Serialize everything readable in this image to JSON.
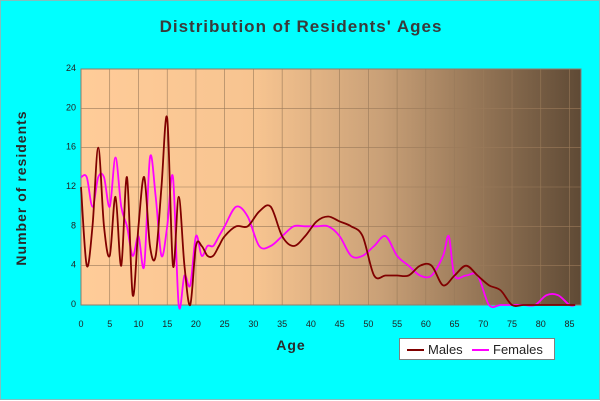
{
  "chart_data": {
    "type": "line",
    "title": "Distribution of Residents' Ages",
    "xlabel": "Age",
    "ylabel": "Number of residents",
    "xlim": [
      0,
      87
    ],
    "ylim": [
      0,
      24
    ],
    "x_ticks": [
      0,
      5,
      10,
      15,
      20,
      25,
      30,
      35,
      40,
      45,
      50,
      55,
      60,
      65,
      70,
      75,
      80,
      85
    ],
    "y_ticks": [
      0,
      4,
      8,
      12,
      16,
      20,
      24
    ],
    "grid": true,
    "legend_position": "bottom-right",
    "series": [
      {
        "name": "Males",
        "color": "#800000",
        "points": [
          [
            0,
            12
          ],
          [
            1,
            4
          ],
          [
            2,
            8
          ],
          [
            3,
            16
          ],
          [
            4,
            8
          ],
          [
            5,
            5
          ],
          [
            6,
            11
          ],
          [
            7,
            4
          ],
          [
            8,
            13
          ],
          [
            9,
            1
          ],
          [
            10,
            8
          ],
          [
            11,
            13
          ],
          [
            12,
            6
          ],
          [
            13,
            5
          ],
          [
            14,
            12
          ],
          [
            15,
            19
          ],
          [
            16,
            4
          ],
          [
            17,
            11
          ],
          [
            18,
            4
          ],
          [
            19,
            0
          ],
          [
            20,
            6
          ],
          [
            21,
            6
          ],
          [
            22,
            5
          ],
          [
            23,
            5
          ],
          [
            24,
            6
          ],
          [
            25,
            7
          ],
          [
            27,
            8
          ],
          [
            29,
            8
          ],
          [
            31,
            9.5
          ],
          [
            33,
            10
          ],
          [
            35,
            7
          ],
          [
            37,
            6
          ],
          [
            39,
            7
          ],
          [
            41,
            8.5
          ],
          [
            43,
            9
          ],
          [
            45,
            8.5
          ],
          [
            47,
            8
          ],
          [
            49,
            7
          ],
          [
            51,
            3
          ],
          [
            53,
            3
          ],
          [
            55,
            3
          ],
          [
            57,
            3
          ],
          [
            59,
            4
          ],
          [
            61,
            4
          ],
          [
            63,
            2
          ],
          [
            65,
            3
          ],
          [
            67,
            4
          ],
          [
            69,
            3
          ],
          [
            71,
            2
          ],
          [
            73,
            1.5
          ],
          [
            75,
            0
          ],
          [
            77,
            0
          ],
          [
            79,
            0
          ],
          [
            81,
            0
          ],
          [
            83,
            0
          ],
          [
            85,
            0
          ],
          [
            86,
            0
          ]
        ]
      },
      {
        "name": "Females",
        "color": "#ff00ff",
        "points": [
          [
            0,
            13
          ],
          [
            1,
            13
          ],
          [
            2,
            10
          ],
          [
            3,
            13
          ],
          [
            4,
            13
          ],
          [
            5,
            10
          ],
          [
            6,
            15
          ],
          [
            7,
            10
          ],
          [
            8,
            8
          ],
          [
            9,
            5
          ],
          [
            10,
            7
          ],
          [
            11,
            4
          ],
          [
            12,
            15
          ],
          [
            13,
            11
          ],
          [
            14,
            5
          ],
          [
            15,
            8
          ],
          [
            16,
            13
          ],
          [
            17,
            0
          ],
          [
            18,
            3
          ],
          [
            19,
            2
          ],
          [
            20,
            7
          ],
          [
            21,
            5
          ],
          [
            22,
            6
          ],
          [
            23,
            6
          ],
          [
            24,
            7
          ],
          [
            25,
            8
          ],
          [
            27,
            10
          ],
          [
            29,
            9
          ],
          [
            31,
            6
          ],
          [
            33,
            6
          ],
          [
            35,
            7
          ],
          [
            37,
            8
          ],
          [
            39,
            8
          ],
          [
            41,
            8
          ],
          [
            43,
            8
          ],
          [
            45,
            7
          ],
          [
            47,
            5
          ],
          [
            49,
            5
          ],
          [
            51,
            6
          ],
          [
            53,
            7
          ],
          [
            55,
            5
          ],
          [
            57,
            4
          ],
          [
            59,
            3
          ],
          [
            61,
            3
          ],
          [
            63,
            5
          ],
          [
            64,
            7
          ],
          [
            65,
            3
          ],
          [
            67,
            3
          ],
          [
            69,
            3
          ],
          [
            71,
            0
          ],
          [
            73,
            0
          ],
          [
            75,
            0
          ],
          [
            77,
            0
          ],
          [
            79,
            0
          ],
          [
            81,
            1
          ],
          [
            83,
            1
          ],
          [
            85,
            0
          ],
          [
            86,
            0
          ]
        ]
      }
    ]
  }
}
